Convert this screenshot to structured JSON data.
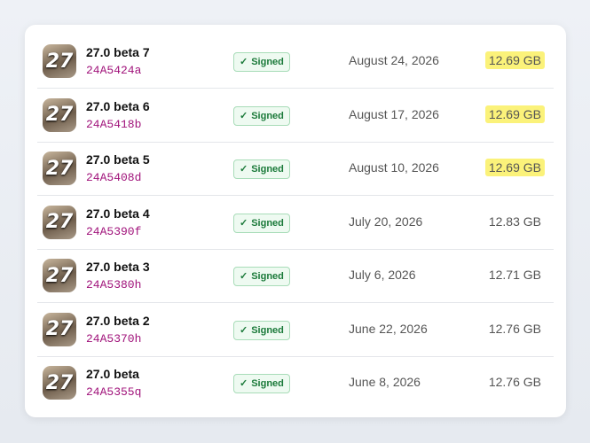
{
  "icon_label": "27",
  "status_label": "Signed",
  "rows": [
    {
      "name": "27.0 beta 7",
      "build": "24A5424a",
      "date": "August 24, 2026",
      "size": "12.69 GB",
      "highlighted": true
    },
    {
      "name": "27.0 beta 6",
      "build": "24A5418b",
      "date": "August 17, 2026",
      "size": "12.69 GB",
      "highlighted": true
    },
    {
      "name": "27.0 beta 5",
      "build": "24A5408d",
      "date": "August 10, 2026",
      "size": "12.69 GB",
      "highlighted": true
    },
    {
      "name": "27.0 beta 4",
      "build": "24A5390f",
      "date": "July 20, 2026",
      "size": "12.83 GB",
      "highlighted": false
    },
    {
      "name": "27.0 beta 3",
      "build": "24A5380h",
      "date": "July 6, 2026",
      "size": "12.71 GB",
      "highlighted": false
    },
    {
      "name": "27.0 beta 2",
      "build": "24A5370h",
      "date": "June 22, 2026",
      "size": "12.76 GB",
      "highlighted": false
    },
    {
      "name": "27.0 beta",
      "build": "24A5355q",
      "date": "June 8, 2026",
      "size": "12.76 GB",
      "highlighted": false
    }
  ]
}
